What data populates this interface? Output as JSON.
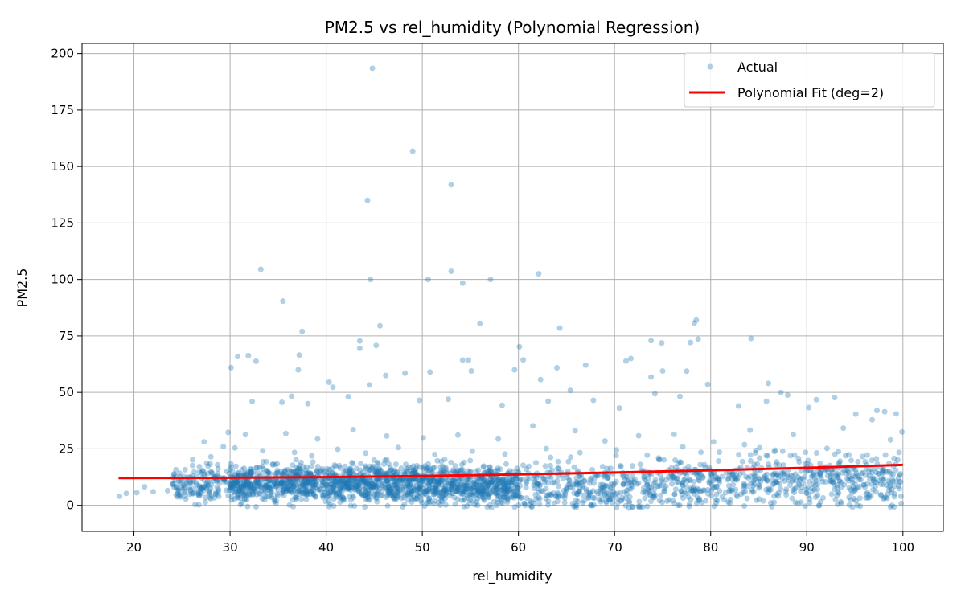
{
  "chart_data": {
    "type": "scatter",
    "title": "PM2.5 vs rel_humidity (Polynomial Regression)",
    "xlabel": "rel_humidity",
    "ylabel": "PM2.5",
    "xlim": [
      14.6,
      104.2
    ],
    "ylim": [
      -11.5,
      204.5
    ],
    "xticks": [
      20,
      30,
      40,
      50,
      60,
      70,
      80,
      90,
      100
    ],
    "yticks": [
      0,
      25,
      50,
      75,
      100,
      125,
      150,
      175,
      200
    ],
    "grid": true,
    "legend_position": "top-right",
    "series": [
      {
        "name": "Actual",
        "kind": "scatter",
        "color": "#1f77b4",
        "alpha": 0.35,
        "points": [
          [
            44.8,
            193.5
          ],
          [
            49.0,
            156.8
          ],
          [
            53.0,
            141.9
          ],
          [
            44.3,
            135.0
          ],
          [
            33.2,
            104.5
          ],
          [
            53.0,
            103.6
          ],
          [
            50.6,
            100.0
          ],
          [
            44.6,
            100.0
          ],
          [
            57.1,
            100.0
          ],
          [
            62.1,
            102.5
          ],
          [
            54.2,
            98.4
          ],
          [
            35.5,
            90.4
          ],
          [
            56.0,
            80.6
          ],
          [
            45.6,
            79.5
          ],
          [
            64.3,
            78.5
          ],
          [
            37.5,
            77.0
          ],
          [
            78.5,
            82.0
          ],
          [
            78.3,
            80.7
          ],
          [
            84.2,
            73.9
          ],
          [
            73.8,
            72.9
          ],
          [
            74.9,
            71.9
          ],
          [
            78.7,
            73.6
          ],
          [
            77.9,
            72.1
          ],
          [
            43.5,
            72.8
          ],
          [
            45.2,
            70.8
          ],
          [
            60.1,
            70.2
          ],
          [
            30.1,
            61.0
          ],
          [
            30.8,
            65.9
          ],
          [
            31.9,
            66.3
          ],
          [
            32.7,
            63.8
          ],
          [
            37.2,
            66.5
          ],
          [
            37.1,
            60.0
          ],
          [
            43.5,
            69.5
          ],
          [
            59.6,
            60.0
          ],
          [
            60.5,
            64.4
          ],
          [
            54.2,
            64.3
          ],
          [
            54.8,
            64.3
          ],
          [
            71.7,
            65.0
          ],
          [
            71.2,
            63.9
          ],
          [
            67.0,
            62.1
          ],
          [
            64.0,
            60.9
          ],
          [
            73.8,
            56.8
          ],
          [
            75.0,
            59.5
          ],
          [
            77.5,
            59.4
          ],
          [
            86.0,
            54.0
          ],
          [
            40.3,
            54.5
          ],
          [
            40.7,
            52.3
          ],
          [
            48.2,
            58.5
          ],
          [
            50.8,
            59.0
          ],
          [
            46.2,
            57.5
          ],
          [
            55.1,
            59.5
          ],
          [
            62.3,
            55.7
          ],
          [
            65.4,
            50.9
          ],
          [
            79.7,
            53.6
          ],
          [
            87.3,
            50.0
          ],
          [
            88.0,
            48.8
          ],
          [
            92.9,
            47.7
          ],
          [
            97.3,
            42.0
          ],
          [
            98.1,
            41.5
          ],
          [
            99.3,
            40.5
          ],
          [
            35.4,
            45.6
          ],
          [
            36.4,
            48.3
          ],
          [
            38.1,
            45.0
          ],
          [
            32.3,
            46.0
          ],
          [
            42.3,
            48.1
          ],
          [
            44.5,
            53.3
          ],
          [
            49.7,
            46.5
          ],
          [
            52.7,
            47.0
          ],
          [
            58.3,
            44.3
          ],
          [
            63.1,
            46.1
          ],
          [
            67.8,
            46.5
          ],
          [
            70.5,
            43.1
          ],
          [
            74.2,
            49.4
          ],
          [
            76.8,
            48.2
          ],
          [
            82.9,
            44.0
          ],
          [
            85.8,
            46.1
          ],
          [
            90.2,
            43.3
          ],
          [
            91.0,
            46.8
          ],
          [
            95.1,
            40.4
          ],
          [
            96.8,
            37.9
          ],
          [
            99.9,
            32.5
          ],
          [
            98.7,
            29.0
          ],
          [
            93.8,
            34.2
          ],
          [
            88.6,
            31.3
          ],
          [
            84.1,
            33.3
          ],
          [
            80.3,
            28.1
          ],
          [
            76.2,
            31.4
          ],
          [
            72.5,
            30.8
          ],
          [
            69.0,
            28.5
          ],
          [
            65.9,
            33.0
          ],
          [
            61.5,
            35.2
          ],
          [
            57.9,
            29.4
          ],
          [
            53.7,
            31.1
          ],
          [
            50.1,
            29.8
          ],
          [
            46.3,
            30.7
          ],
          [
            42.8,
            33.5
          ],
          [
            39.1,
            29.4
          ],
          [
            35.8,
            31.8
          ],
          [
            31.6,
            31.3
          ],
          [
            29.8,
            32.3
          ],
          [
            27.3,
            28.1
          ],
          [
            26.1,
            20.2
          ],
          [
            22.0,
            6.0
          ],
          [
            21.1,
            8.2
          ],
          [
            20.3,
            5.6
          ],
          [
            18.5,
            4.0
          ],
          [
            19.2,
            5.3
          ],
          [
            23.5,
            6.5
          ],
          [
            24.8,
            9.8
          ],
          [
            25.6,
            12.4
          ],
          [
            28.0,
            21.5
          ],
          [
            29.3,
            26.0
          ],
          [
            30.5,
            25.4
          ],
          [
            33.4,
            24.2
          ],
          [
            36.7,
            23.4
          ],
          [
            38.5,
            21.9
          ],
          [
            41.2,
            24.8
          ],
          [
            44.1,
            23.1
          ],
          [
            47.5,
            25.6
          ],
          [
            51.3,
            22.5
          ],
          [
            55.2,
            24.0
          ],
          [
            58.6,
            22.7
          ],
          [
            62.9,
            25.1
          ],
          [
            66.4,
            23.3
          ],
          [
            70.2,
            24.5
          ],
          [
            73.4,
            22.2
          ],
          [
            77.1,
            25.9
          ],
          [
            80.9,
            23.5
          ],
          [
            84.7,
            24.3
          ],
          [
            88.3,
            22.0
          ],
          [
            92.1,
            25.2
          ],
          [
            95.8,
            21.6
          ],
          [
            99.6,
            23.4
          ],
          [
            31.2,
            1.1
          ],
          [
            36.5,
            2.4
          ],
          [
            41.8,
            3.2
          ],
          [
            48.9,
            1.5
          ],
          [
            55.3,
            2.1
          ],
          [
            57.2,
            -1.0
          ],
          [
            61.4,
            -0.5
          ],
          [
            66.7,
            1.0
          ],
          [
            71.5,
            -1.2
          ],
          [
            77.8,
            0.6
          ],
          [
            83.5,
            -0.3
          ],
          [
            89.4,
            1.4
          ],
          [
            94.6,
            2.5
          ],
          [
            98.2,
            3.5
          ],
          [
            99.8,
            4.0
          ],
          [
            30.6,
            6.1
          ],
          [
            34.9,
            5.0
          ],
          [
            39.7,
            4.6
          ],
          [
            45.3,
            5.3
          ],
          [
            52.4,
            4.8
          ],
          [
            59.8,
            3.9
          ],
          [
            64.6,
            4.2
          ],
          [
            69.3,
            3.6
          ],
          [
            74.8,
            4.4
          ],
          [
            81.2,
            3.8
          ],
          [
            86.9,
            4.9
          ],
          [
            91.7,
            3.3
          ],
          [
            96.3,
            5.6
          ]
        ],
        "band": {
          "x_range": [
            24,
            100
          ],
          "center_at_x": [
            [
              25,
              9
            ],
            [
              35,
              10
            ],
            [
              45,
              10
            ],
            [
              55,
              9
            ],
            [
              65,
              8
            ],
            [
              75,
              9
            ],
            [
              85,
              11
            ],
            [
              95,
              12
            ]
          ],
          "spread": 7,
          "count": 2600
        }
      },
      {
        "name": "Polynomial Fit (deg=2)",
        "kind": "line",
        "color": "#ff0000",
        "points": [
          [
            18.4,
            12.1
          ],
          [
            30,
            12.2
          ],
          [
            40,
            12.5
          ],
          [
            50,
            13.0
          ],
          [
            60,
            13.7
          ],
          [
            70,
            14.5
          ],
          [
            80,
            15.5
          ],
          [
            90,
            16.6
          ],
          [
            100,
            17.9
          ]
        ]
      }
    ]
  }
}
